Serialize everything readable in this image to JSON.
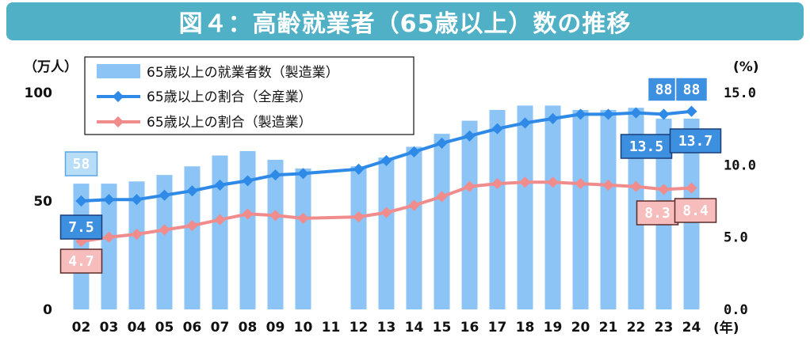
{
  "title": "図４：高齢就業者（65歳以上）数の推移",
  "chart_data": {
    "type": "bar+line",
    "title": "図４：高齢就業者（65歳以上）数の推移",
    "left_axis_unit": "（万人）",
    "right_axis_unit": "(%)",
    "x_unit": "(年)",
    "categories": [
      "02",
      "03",
      "04",
      "05",
      "06",
      "07",
      "08",
      "09",
      "10",
      "11",
      "12",
      "13",
      "14",
      "15",
      "16",
      "17",
      "18",
      "19",
      "20",
      "21",
      "22",
      "23",
      "24"
    ],
    "left_ticks": [
      "0",
      "50",
      "100"
    ],
    "right_ticks": [
      "0.0",
      "5.0",
      "10.0",
      "15.0"
    ],
    "ylim_left": [
      0,
      100
    ],
    "ylim_right": [
      0,
      15
    ],
    "series": [
      {
        "name": "65歳以上の就業者数（製造業）",
        "kind": "bar",
        "axis": "left",
        "color": "#8cc4f5",
        "values": [
          58,
          58,
          59,
          62,
          66,
          71,
          73,
          69,
          65,
          null,
          66,
          70,
          75,
          81,
          87,
          92,
          94,
          94,
          92,
          92,
          93,
          88,
          88
        ]
      },
      {
        "name": "65歳以上の割合（全産業）",
        "kind": "line",
        "axis": "right",
        "color": "#2e8ae6",
        "values": [
          7.5,
          7.6,
          7.6,
          7.9,
          8.2,
          8.6,
          8.9,
          9.3,
          9.4,
          null,
          9.7,
          10.3,
          10.9,
          11.5,
          12.0,
          12.5,
          12.9,
          13.2,
          13.5,
          13.5,
          13.6,
          13.5,
          13.7
        ]
      },
      {
        "name": "65歳以上の割合（製造業）",
        "kind": "line",
        "axis": "right",
        "color": "#f08c8c",
        "values": [
          4.7,
          5.0,
          5.2,
          5.5,
          5.8,
          6.2,
          6.6,
          6.5,
          6.3,
          null,
          6.4,
          6.7,
          7.2,
          7.8,
          8.5,
          8.7,
          8.8,
          8.8,
          8.7,
          8.6,
          8.5,
          8.3,
          8.4
        ]
      }
    ],
    "annotations": {
      "bar_first": "58",
      "bar_2023": "88",
      "bar_2024": "88",
      "all_first": "7.5",
      "all_2023": "13.5",
      "all_2024": "13.7",
      "mfg_first": "4.7",
      "mfg_2023": "8.3",
      "mfg_2024": "8.4"
    }
  }
}
